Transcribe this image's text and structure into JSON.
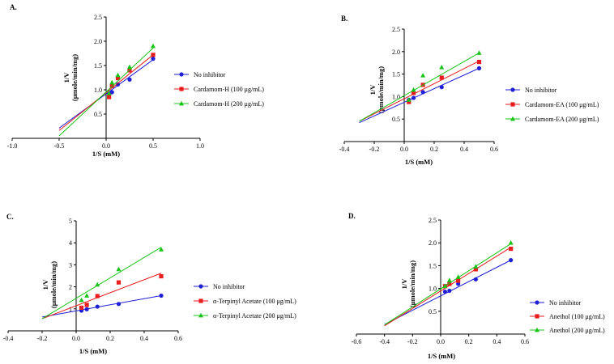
{
  "figure": {
    "chart_data": [
      {
        "panel": "A.",
        "type": "line",
        "title": "",
        "xlabel": "1/S (mM)",
        "ylabel": "1/V\n(μmole/min/mg)",
        "xlim": [
          -1.0,
          1.0
        ],
        "ylim": [
          0,
          2.5
        ],
        "xticks": [
          "-1.0",
          "-0.5",
          "0.0",
          "0.5",
          "1.0"
        ],
        "yticks": [
          "0.5",
          "1.0",
          "1.5",
          "2.0",
          "2.5"
        ],
        "legend_position": "right",
        "series": [
          {
            "name": "No inhibitor",
            "color": "#1f1fd6",
            "marker": "circle",
            "x": [
              0.03125,
              0.0625,
              0.125,
              0.25,
              0.5
            ],
            "y": [
              0.92,
              0.95,
              1.11,
              1.21,
              1.64
            ],
            "fit": [
              [
                -0.5,
                0.21
              ],
              [
                0.5,
                1.62
              ]
            ]
          },
          {
            "name": "Cardamom-H (100 μg/mL)",
            "color": "#e81e1e",
            "marker": "square",
            "x": [
              0.03125,
              0.0625,
              0.125,
              0.25,
              0.5
            ],
            "y": [
              0.85,
              1.08,
              1.24,
              1.4,
              1.72
            ],
            "fit": [
              [
                -0.5,
                0.16
              ],
              [
                0.5,
                1.72
              ]
            ]
          },
          {
            "name": "Cardamom-H (200 μg/mL)",
            "color": "#17c417",
            "marker": "triangle",
            "x": [
              0.03125,
              0.0625,
              0.125,
              0.25,
              0.5
            ],
            "y": [
              0.93,
              1.15,
              1.3,
              1.47,
              1.9
            ],
            "fit": [
              [
                -0.5,
                0.05
              ],
              [
                0.5,
                1.86
              ]
            ]
          }
        ]
      },
      {
        "panel": "B.",
        "type": "line",
        "title": "",
        "xlabel": "1/S (mM)",
        "ylabel": "1/V\n(μmole/min/mg)",
        "xlim": [
          -0.4,
          0.6
        ],
        "ylim": [
          0,
          2.5
        ],
        "xticks": [
          "-0.4",
          "-0.2",
          "0.0",
          "0.2",
          "0.4",
          "0.6"
        ],
        "yticks": [
          "0.5",
          "1.0",
          "1.5",
          "2.0",
          "2.5"
        ],
        "legend_position": "right",
        "series": [
          {
            "name": "No inhibitor",
            "color": "#1f1fd6",
            "marker": "circle",
            "x": [
              0.03125,
              0.0625,
              0.125,
              0.25,
              0.5
            ],
            "y": [
              0.93,
              0.97,
              1.1,
              1.21,
              1.63
            ],
            "fit": [
              [
                -0.3,
                0.42
              ],
              [
                0.5,
                1.63
              ]
            ]
          },
          {
            "name": "Cardamom-EA (100 μg/mL)",
            "color": "#e81e1e",
            "marker": "square",
            "x": [
              0.03125,
              0.0625,
              0.125,
              0.25,
              0.5
            ],
            "y": [
              0.88,
              1.08,
              1.26,
              1.42,
              1.77
            ],
            "fit": [
              [
                -0.3,
                0.45
              ],
              [
                0.5,
                1.79
              ]
            ]
          },
          {
            "name": "Cardamom-EA (200 μg/mL)",
            "color": "#17c417",
            "marker": "triangle",
            "x": [
              0.03125,
              0.0625,
              0.125,
              0.25,
              0.5
            ],
            "y": [
              0.93,
              1.15,
              1.47,
              1.65,
              1.97
            ],
            "fit": [
              [
                -0.3,
                0.45
              ],
              [
                0.5,
                1.97
              ]
            ]
          }
        ]
      },
      {
        "panel": "C.",
        "type": "line",
        "title": "",
        "xlabel": "1/S (mM)",
        "ylabel": "1/V\n(μmole/min/mg)",
        "xlim": [
          -0.4,
          0.6
        ],
        "ylim": [
          0,
          5
        ],
        "xticks": [
          "-0.4",
          "-0.2",
          "0.0",
          "0.2",
          "0.4",
          "0.6"
        ],
        "yticks": [
          "1",
          "2",
          "3",
          "4",
          "5"
        ],
        "legend_position": "right",
        "series": [
          {
            "name": "No inhibitor",
            "color": "#1f1fd6",
            "marker": "circle",
            "x": [
              0.03125,
              0.0625,
              0.125,
              0.25,
              0.5
            ],
            "y": [
              0.92,
              0.98,
              1.1,
              1.22,
              1.6
            ],
            "fit": [
              [
                -0.2,
                0.63
              ],
              [
                0.5,
                1.6
              ]
            ]
          },
          {
            "name": "α-Terpinyl Acetate (100 μg/mL)",
            "color": "#e81e1e",
            "marker": "square",
            "x": [
              0.03125,
              0.0625,
              0.125,
              0.25,
              0.5
            ],
            "y": [
              1.05,
              1.18,
              1.58,
              2.2,
              2.48
            ],
            "fit": [
              [
                -0.2,
                0.55
              ],
              [
                0.5,
                2.62
              ]
            ]
          },
          {
            "name": "α-Terpinyl Acetate (200 μg/mL)",
            "color": "#17c417",
            "marker": "triangle",
            "x": [
              0.03125,
              0.0625,
              0.125,
              0.25,
              0.5
            ],
            "y": [
              1.4,
              1.6,
              2.1,
              2.8,
              3.7
            ],
            "fit": [
              [
                -0.2,
                0.55
              ],
              [
                0.5,
                3.8
              ]
            ]
          }
        ]
      },
      {
        "panel": "D.",
        "type": "line",
        "title": "",
        "xlabel": "1/S (mM)",
        "ylabel": "1/V\n(μmole/min/mg)",
        "xlim": [
          -0.6,
          0.6
        ],
        "ylim": [
          0,
          2.5
        ],
        "xticks": [
          "-0.6",
          "-0.4",
          "-0.2",
          "0.0",
          "0.2",
          "0.4",
          "0.6"
        ],
        "yticks": [
          "0.5",
          "1.0",
          "1.5",
          "2.0",
          "2.5"
        ],
        "legend_position": "right",
        "series": [
          {
            "name": "No inhibitor",
            "color": "#1f1fd6",
            "marker": "circle",
            "x": [
              0.03125,
              0.0625,
              0.125,
              0.25,
              0.5
            ],
            "y": [
              0.93,
              0.95,
              1.1,
              1.2,
              1.62
            ],
            "fit": [
              [
                -0.4,
                0.21
              ],
              [
                0.5,
                1.62
              ]
            ]
          },
          {
            "name": "Anethol (100 μg/mL)",
            "color": "#e81e1e",
            "marker": "square",
            "x": [
              0.03125,
              0.0625,
              0.125,
              0.25,
              0.5
            ],
            "y": [
              1.05,
              1.1,
              1.17,
              1.42,
              1.87
            ],
            "fit": [
              [
                -0.4,
                0.18
              ],
              [
                0.5,
                1.9
              ]
            ]
          },
          {
            "name": "Anethol (200 μg/mL)",
            "color": "#17c417",
            "marker": "triangle",
            "x": [
              0.03125,
              0.0625,
              0.125,
              0.25,
              0.5
            ],
            "y": [
              1.05,
              1.18,
              1.25,
              1.48,
              2.0
            ],
            "fit": [
              [
                -0.4,
                0.2
              ],
              [
                0.5,
                1.98
              ]
            ]
          }
        ]
      }
    ]
  }
}
